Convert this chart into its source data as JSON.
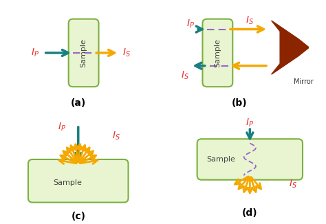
{
  "bg_color": "#ffffff",
  "teal": "#1a7f7f",
  "yellow": "#f5a800",
  "red": "#e83030",
  "green_box": "#e8f5d0",
  "green_border": "#7ab040",
  "brown": "#8b2500",
  "purple": "#9966cc",
  "label_a": "(a)",
  "label_b": "(b)",
  "label_c": "(c)",
  "label_d": "(d)"
}
